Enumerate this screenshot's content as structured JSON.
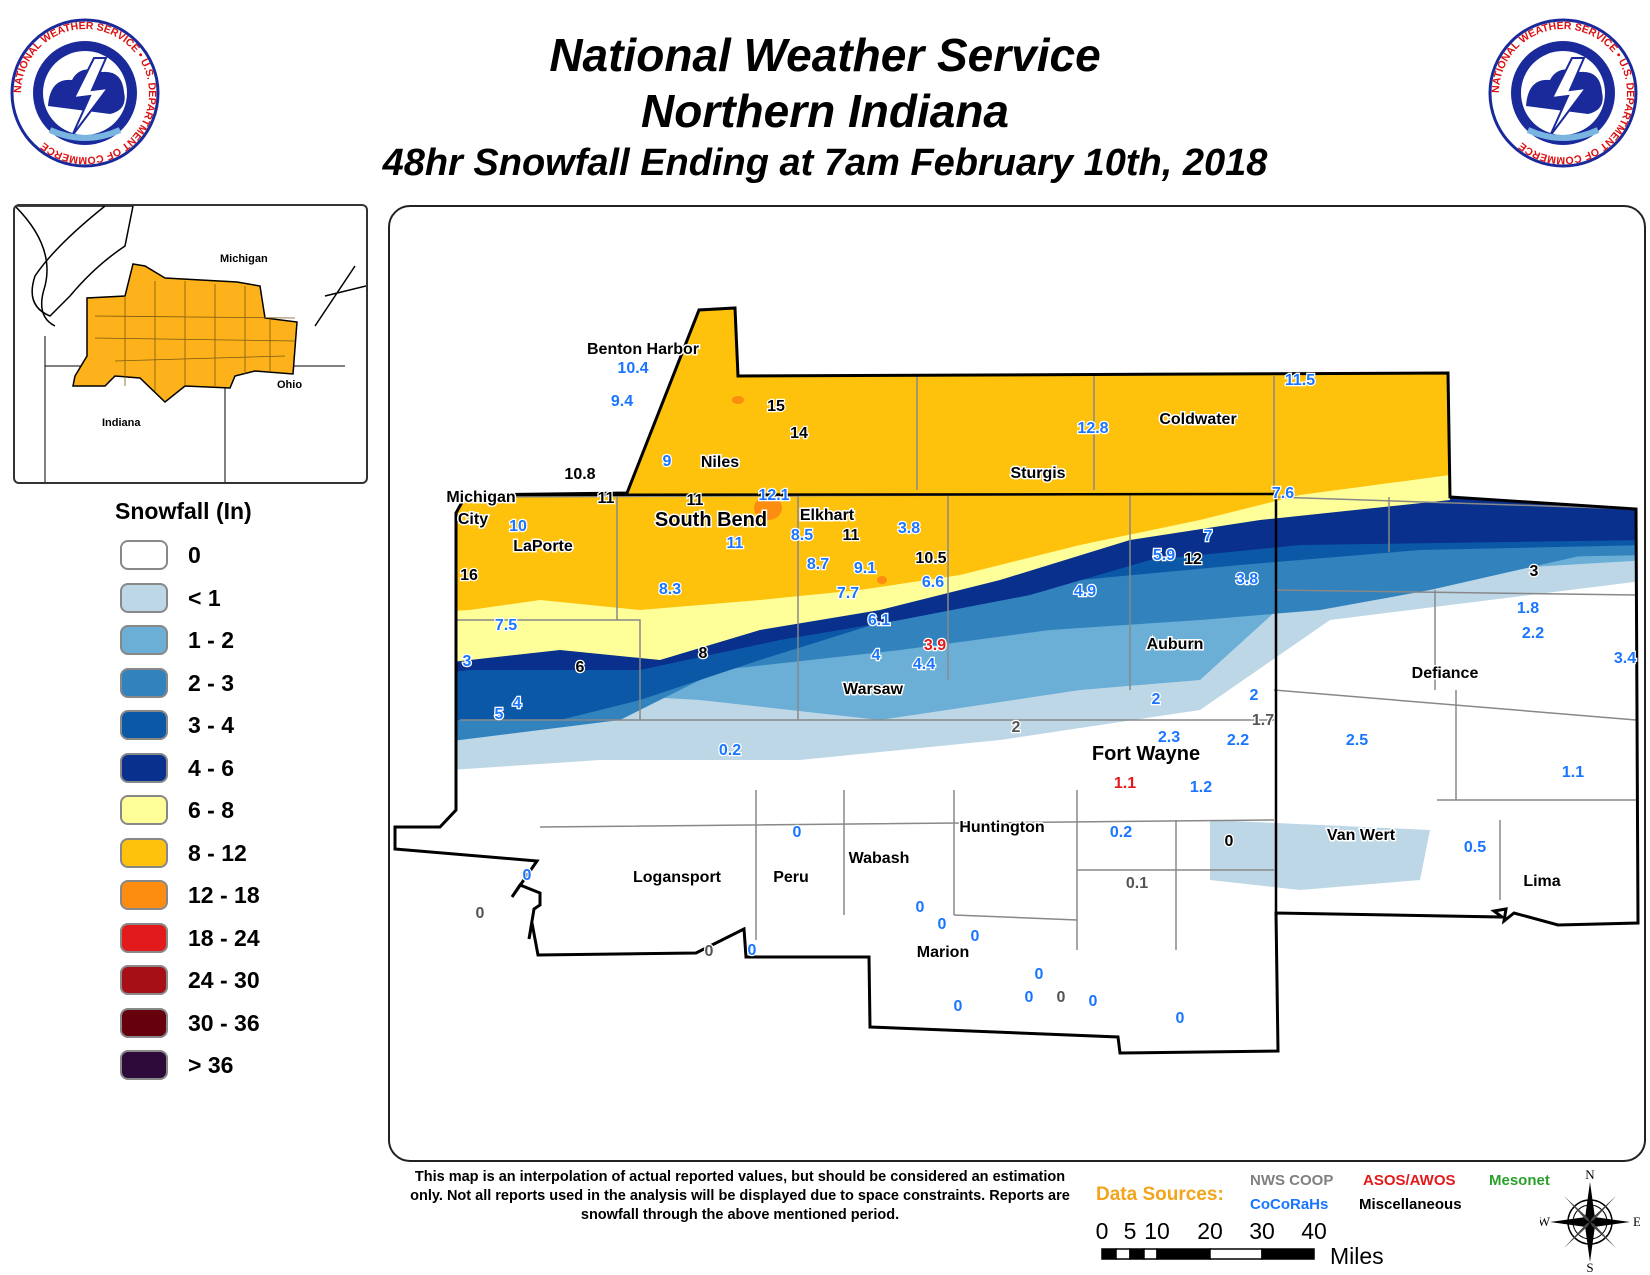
{
  "header": {
    "line1": "National Weather Service",
    "line2": "Northern Indiana",
    "line3": "48hr Snowfall Ending at 7am February 10th, 2018"
  },
  "logo": {
    "text": "NATIONAL WEATHER SERVICE • U.S. DEPARTMENT OF COMMERCE"
  },
  "inset": {
    "labels": [
      "Michigan",
      "Ohio",
      "Indiana"
    ]
  },
  "legend": {
    "title": "Snowfall (In)",
    "items": [
      {
        "label": "0",
        "color": "#ffffff"
      },
      {
        "label": "< 1",
        "color": "#bdd7e7"
      },
      {
        "label": "1 - 2",
        "color": "#6baed6"
      },
      {
        "label": "2 - 3",
        "color": "#3182bd"
      },
      {
        "label": "3 - 4",
        "color": "#0b59a6"
      },
      {
        "label": "4 - 6",
        "color": "#08308c"
      },
      {
        "label": "6 - 8",
        "color": "#ffff99"
      },
      {
        "label": "8 - 12",
        "color": "#fec20c"
      },
      {
        "label": "12 - 18",
        "color": "#fd8d10"
      },
      {
        "label": "18 - 24",
        "color": "#e31a1c"
      },
      {
        "label": "24 - 30",
        "color": "#a50f15"
      },
      {
        "label": "30 - 36",
        "color": "#67000d"
      },
      {
        "label": "> 36",
        "color": "#2d0a3a"
      }
    ]
  },
  "map": {
    "cities": [
      "Benton Harbor",
      "Niles",
      "Coldwater",
      "Sturgis",
      "Michigan City",
      "LaPorte",
      "South Bend",
      "Elkhart",
      "Warsaw",
      "Auburn",
      "Defiance",
      "Fort Wayne",
      "Huntington",
      "Wabash",
      "Logansport",
      "Peru",
      "Marion",
      "Van Wert",
      "Lima"
    ],
    "reports": [
      {
        "v": "10.4",
        "c": "#1a75ff"
      },
      {
        "v": "9.4",
        "c": "#1a75ff"
      },
      {
        "v": "15",
        "c": "#000000"
      },
      {
        "v": "14",
        "c": "#000000"
      },
      {
        "v": "9",
        "c": "#1a75ff"
      },
      {
        "v": "10.8",
        "c": "#000000"
      },
      {
        "v": "11",
        "c": "#000000"
      },
      {
        "v": "11",
        "c": "#000000"
      },
      {
        "v": "12.1",
        "c": "#1a75ff"
      },
      {
        "v": "12.8",
        "c": "#1a75ff"
      },
      {
        "v": "11.5",
        "c": "#1a75ff"
      },
      {
        "v": "7.6",
        "c": "#1a75ff"
      },
      {
        "v": "10",
        "c": "#1a75ff"
      },
      {
        "v": "11",
        "c": "#1a75ff"
      },
      {
        "v": "8.5",
        "c": "#1a75ff"
      },
      {
        "v": "11",
        "c": "#000000"
      },
      {
        "v": "3.8",
        "c": "#1a75ff"
      },
      {
        "v": "10.5",
        "c": "#000000"
      },
      {
        "v": "16",
        "c": "#000000"
      },
      {
        "v": "8.3",
        "c": "#1a75ff"
      },
      {
        "v": "8.7",
        "c": "#1a75ff"
      },
      {
        "v": "9.1",
        "c": "#1a75ff"
      },
      {
        "v": "6.6",
        "c": "#1a75ff"
      },
      {
        "v": "7.7",
        "c": "#1a75ff"
      },
      {
        "v": "7.5",
        "c": "#1a75ff"
      },
      {
        "v": "6.1",
        "c": "#1a75ff"
      },
      {
        "v": "3.9",
        "c": "#e31a1c"
      },
      {
        "v": "3",
        "c": "#1a75ff"
      },
      {
        "v": "6",
        "c": "#000000"
      },
      {
        "v": "8",
        "c": "#000000"
      },
      {
        "v": "4",
        "c": "#1a75ff"
      },
      {
        "v": "4.4",
        "c": "#1a75ff"
      },
      {
        "v": "5",
        "c": "#1a75ff"
      },
      {
        "v": "4",
        "c": "#1a75ff"
      },
      {
        "v": "4.9",
        "c": "#1a75ff"
      },
      {
        "v": "5.9",
        "c": "#1a75ff"
      },
      {
        "v": "7",
        "c": "#1a75ff"
      },
      {
        "v": "12",
        "c": "#000000"
      },
      {
        "v": "3.8",
        "c": "#1a75ff"
      },
      {
        "v": "3",
        "c": "#000000"
      },
      {
        "v": "1.8",
        "c": "#1a75ff"
      },
      {
        "v": "2.2",
        "c": "#1a75ff"
      },
      {
        "v": "3.4",
        "c": "#1a75ff"
      },
      {
        "v": "2",
        "c": "#1a75ff"
      },
      {
        "v": "2",
        "c": "#1a75ff"
      },
      {
        "v": "1.7",
        "c": "#555555"
      },
      {
        "v": "2.3",
        "c": "#1a75ff"
      },
      {
        "v": "2.2",
        "c": "#1a75ff"
      },
      {
        "v": "2",
        "c": "#555555"
      },
      {
        "v": "2.5",
        "c": "#1a75ff"
      },
      {
        "v": "1.1",
        "c": "#1a75ff"
      },
      {
        "v": "0.2",
        "c": "#1a75ff"
      },
      {
        "v": "1.1",
        "c": "#e31a1c"
      },
      {
        "v": "1.2",
        "c": "#1a75ff"
      },
      {
        "v": "0.2",
        "c": "#1a75ff"
      },
      {
        "v": "0",
        "c": "#000000"
      },
      {
        "v": "0.5",
        "c": "#1a75ff"
      },
      {
        "v": "0",
        "c": "#1a75ff"
      },
      {
        "v": "0",
        "c": "#1a75ff"
      },
      {
        "v": "0",
        "c": "#555555"
      },
      {
        "v": "0.1",
        "c": "#555555"
      },
      {
        "v": "0",
        "c": "#1a75ff"
      },
      {
        "v": "0",
        "c": "#1a75ff"
      },
      {
        "v": "0",
        "c": "#1a75ff"
      },
      {
        "v": "0",
        "c": "#555555"
      },
      {
        "v": "0",
        "c": "#1a75ff"
      },
      {
        "v": "0",
        "c": "#1a75ff"
      },
      {
        "v": "0",
        "c": "#1a75ff"
      },
      {
        "v": "0",
        "c": "#1a75ff"
      },
      {
        "v": "0",
        "c": "#555555"
      },
      {
        "v": "0",
        "c": "#1a75ff"
      },
      {
        "v": "0",
        "c": "#1a75ff"
      }
    ]
  },
  "footer": {
    "disclaimer": "This map is an interpolation of actual reported values, but should be considered an estimation only. Not all reports used in the analysis will be displayed due to space constraints. Reports are snowfall through the above mentioned period.",
    "sources_label": "Data Sources:",
    "sources": [
      {
        "label": "NWS COOP",
        "color": "#808080"
      },
      {
        "label": "ASOS/AWOS",
        "color": "#e31a1c"
      },
      {
        "label": "Mesonet",
        "color": "#2ca02c"
      },
      {
        "label": "CoCoRaHs",
        "color": "#1a75ff"
      },
      {
        "label": "Miscellaneous",
        "color": "#000000"
      }
    ],
    "scale_ticks": [
      "0",
      "5",
      "10",
      "20",
      "30",
      "40"
    ],
    "scale_unit": "Miles",
    "compass": [
      "N",
      "S",
      "E",
      "W"
    ]
  }
}
